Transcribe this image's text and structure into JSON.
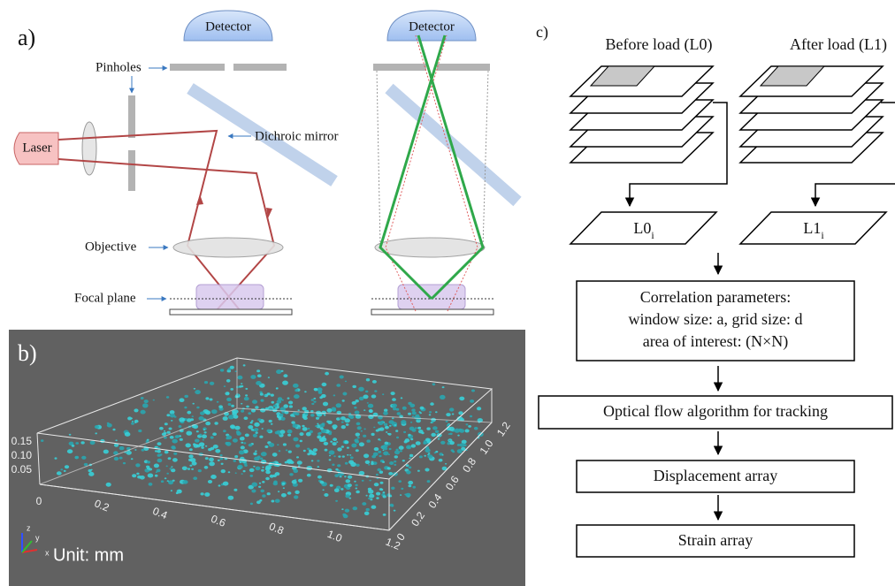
{
  "panel_a": {
    "label": "a)",
    "detector_left": "Detector",
    "detector_right": "Detector",
    "pinholes": "Pinholes",
    "laser": "Laser",
    "dichroic_mirror": "Dichroic mirror",
    "objective": "Objective",
    "focal_plane": "Focal plane"
  },
  "panel_b": {
    "label": "b)",
    "unit": "Unit: mm",
    "x_ticks": [
      "0",
      "0.2",
      "0.4",
      "0.6",
      "0.8",
      "1.0",
      "1.2"
    ],
    "y_ticks": [
      "0",
      "0.2",
      "0.4",
      "0.6",
      "0.8",
      "1.0",
      "1.2"
    ],
    "z_ticks": [
      "0",
      "0.05",
      "0.10",
      "0.15"
    ],
    "axis_labels": [
      "x",
      "y",
      "z"
    ]
  },
  "panel_c": {
    "label": "c)",
    "before": "Before load (L0)",
    "after": "After load (L1)",
    "l0": {
      "main": "L0",
      "sub": "i"
    },
    "l1": {
      "main": "L1",
      "sub": "i"
    },
    "correlation": [
      "Correlation parameters:",
      "window size: a, grid size: d",
      "area of interest: (N×N)"
    ],
    "optical_flow": "Optical flow algorithm for tracking",
    "displacement": "Displacement array",
    "strain": "Strain array"
  }
}
